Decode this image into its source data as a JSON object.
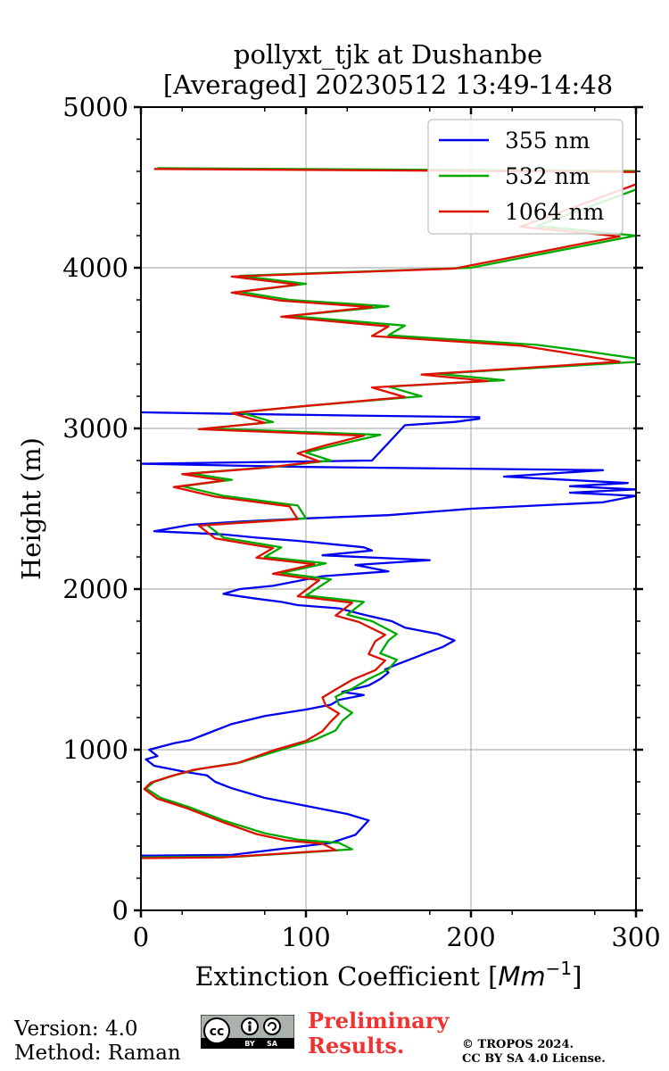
{
  "chart_data": {
    "type": "line",
    "title_line1": "pollyxt_tjk at Dushanbe",
    "title_line2": "[Averaged] 20230512 13:49-14:48",
    "xlabel_prefix": "Extinction Coefficient [",
    "xlabel_unit": "Mm",
    "xlabel_exp": "−1",
    "xlabel_suffix": "]",
    "ylabel": "Height (m)",
    "xlim": [
      0,
      300
    ],
    "ylim": [
      0,
      5000
    ],
    "xticks": [
      "0",
      "100",
      "200",
      "300"
    ],
    "yticks": [
      "0",
      "1000",
      "2000",
      "3000",
      "4000",
      "5000"
    ],
    "grid": true,
    "legend_position": "top-right",
    "series": [
      {
        "name": "355 nm",
        "color": "#0000ee",
        "x": [
          0,
          55,
          115,
          130,
          138,
          125,
          105,
          75,
          55,
          45,
          40,
          28,
          8,
          3,
          10,
          5,
          20,
          30,
          40,
          55,
          75,
          100,
          115,
          120,
          135,
          122,
          138,
          145,
          150,
          148,
          155,
          165,
          175,
          183,
          190,
          180,
          160,
          152,
          135,
          120,
          95,
          85,
          70,
          50,
          60,
          80,
          95,
          110,
          150,
          130,
          175,
          110,
          140,
          135,
          95,
          70,
          50,
          8,
          30,
          60,
          100,
          150,
          200,
          280,
          300,
          260,
          300,
          260,
          295,
          220,
          280,
          100,
          0,
          140,
          160,
          190,
          205,
          205,
          130,
          60,
          0
        ],
        "y": [
          340,
          345,
          420,
          470,
          560,
          600,
          640,
          700,
          760,
          800,
          840,
          860,
          900,
          940,
          960,
          1000,
          1040,
          1060,
          1100,
          1160,
          1210,
          1250,
          1280,
          1310,
          1340,
          1360,
          1400,
          1440,
          1480,
          1500,
          1530,
          1570,
          1610,
          1640,
          1680,
          1720,
          1760,
          1800,
          1840,
          1880,
          1900,
          1920,
          1940,
          1970,
          2000,
          2020,
          2050,
          2080,
          2110,
          2150,
          2180,
          2210,
          2240,
          2260,
          2300,
          2320,
          2340,
          2360,
          2400,
          2420,
          2440,
          2460,
          2500,
          2540,
          2580,
          2600,
          2620,
          2640,
          2660,
          2700,
          2740,
          2760,
          2780,
          2800,
          3020,
          3040,
          3060,
          3070,
          3080,
          3090,
          3100
        ]
      },
      {
        "name": "532 nm",
        "color": "#00aa00",
        "x": [
          0,
          60,
          128,
          120,
          95,
          75,
          50,
          30,
          12,
          3,
          8,
          20,
          35,
          60,
          85,
          105,
          118,
          122,
          128,
          120,
          118,
          128,
          138,
          150,
          155,
          145,
          150,
          155,
          140,
          125,
          135,
          100,
          115,
          85,
          112,
          75,
          85,
          50,
          40,
          100,
          95,
          50,
          25,
          55,
          30,
          80,
          115,
          100,
          120,
          145,
          40,
          80,
          60,
          100,
          170,
          150,
          220,
          180,
          310,
          270,
          240,
          150,
          160,
          90,
          150,
          90,
          60,
          100,
          60,
          200,
          300,
          240,
          330,
          10
        ],
        "y": [
          330,
          335,
          380,
          420,
          440,
          480,
          560,
          640,
          700,
          760,
          800,
          840,
          880,
          920,
          1000,
          1060,
          1120,
          1180,
          1230,
          1280,
          1330,
          1380,
          1440,
          1500,
          1560,
          1600,
          1680,
          1720,
          1800,
          1840,
          1920,
          1960,
          2060,
          2100,
          2160,
          2200,
          2260,
          2320,
          2400,
          2440,
          2520,
          2580,
          2640,
          2680,
          2720,
          2760,
          2800,
          2850,
          2900,
          2960,
          3000,
          3040,
          3100,
          3140,
          3200,
          3260,
          3300,
          3340,
          3420,
          3480,
          3520,
          3580,
          3640,
          3700,
          3760,
          3800,
          3850,
          3900,
          3950,
          4000,
          4200,
          4260,
          4600,
          4620
        ]
      },
      {
        "name": "1064 nm",
        "color": "#dd1100",
        "x": [
          0,
          50,
          118,
          110,
          88,
          70,
          48,
          28,
          10,
          2,
          6,
          18,
          32,
          58,
          80,
          100,
          110,
          115,
          120,
          112,
          110,
          118,
          128,
          142,
          148,
          138,
          142,
          148,
          132,
          118,
          128,
          95,
          108,
          80,
          105,
          70,
          80,
          45,
          35,
          95,
          90,
          45,
          20,
          50,
          25,
          75,
          108,
          95,
          112,
          135,
          35,
          75,
          55,
          95,
          160,
          140,
          210,
          170,
          290,
          255,
          230,
          140,
          150,
          85,
          140,
          85,
          55,
          95,
          55,
          190,
          290,
          230,
          320,
          8
        ],
        "y": [
          325,
          330,
          375,
          415,
          435,
          475,
          555,
          635,
          695,
          755,
          795,
          835,
          875,
          915,
          995,
          1055,
          1115,
          1175,
          1225,
          1275,
          1325,
          1375,
          1435,
          1495,
          1555,
          1595,
          1675,
          1715,
          1795,
          1835,
          1915,
          1955,
          2055,
          2095,
          2155,
          2195,
          2255,
          2315,
          2395,
          2435,
          2515,
          2575,
          2635,
          2675,
          2715,
          2755,
          2795,
          2845,
          2895,
          2955,
          2995,
          3035,
          3095,
          3135,
          3195,
          3255,
          3295,
          3335,
          3415,
          3475,
          3515,
          3575,
          3635,
          3695,
          3755,
          3795,
          3845,
          3895,
          3945,
          3995,
          4195,
          4255,
          4595,
          4615
        ]
      }
    ]
  },
  "footer": {
    "version": "Version: 4.0",
    "method": "Method: Raman",
    "preliminary_line1": "Preliminary",
    "preliminary_line2": "Results.",
    "copyright_line1": "© TROPOS 2024.",
    "copyright_line2": "CC BY SA 4.0 License.",
    "license_logo_text": "cc",
    "license_by": "BY",
    "license_sa": "SA"
  }
}
